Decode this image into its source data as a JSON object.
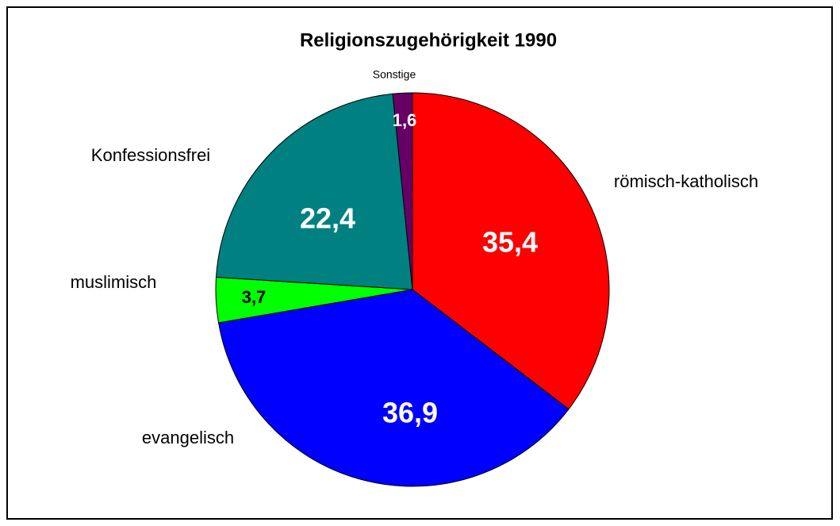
{
  "chart_data": {
    "type": "pie",
    "title": "Religionszugehörigkeit 1990",
    "categories": [
      "römisch-katholisch",
      "evangelisch",
      "muslimisch",
      "Konfessionsfrei",
      "Sonstige"
    ],
    "values": [
      35.4,
      36.9,
      3.7,
      22.4,
      1.6
    ],
    "value_labels": [
      "35,4",
      "36,9",
      "3,7",
      "22,4",
      "1,6"
    ],
    "colors": [
      "#ff0000",
      "#0000ff",
      "#00ff00",
      "#008080",
      "#660066"
    ]
  }
}
